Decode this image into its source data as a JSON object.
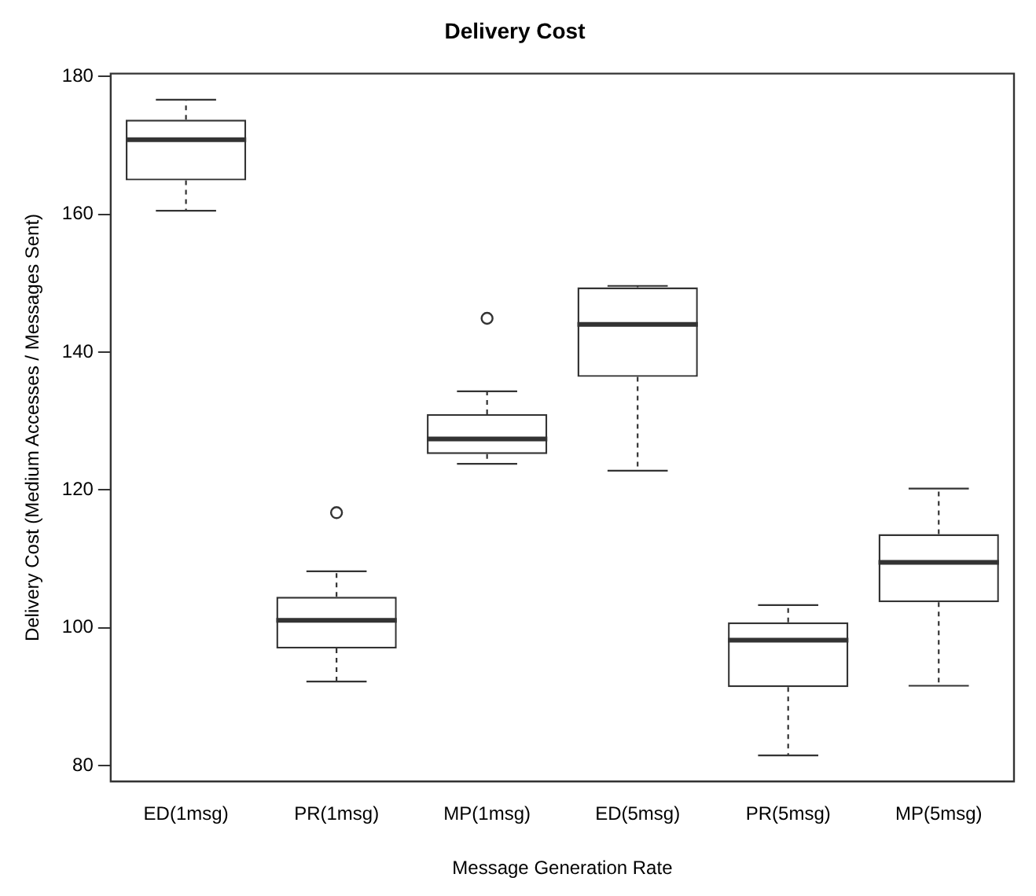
{
  "chart_data": {
    "type": "box",
    "title": "Delivery Cost",
    "xlabel": "Message Generation Rate",
    "ylabel": "Delivery Cost (Medium Accesses / Messages Sent)",
    "categories": [
      "ED(1msg)",
      "PR(1msg)",
      "MP(1msg)",
      "ED(5msg)",
      "PR(5msg)",
      "MP(5msg)"
    ],
    "boxes": [
      {
        "low": 160.5,
        "q1": 164.9,
        "median": 170.8,
        "q3": 173.7,
        "high": 176.6
      },
      {
        "low": 92.2,
        "q1": 97.0,
        "median": 101.1,
        "q3": 104.5,
        "high": 108.2,
        "outliers": [
          116.7
        ]
      },
      {
        "low": 123.8,
        "q1": 125.2,
        "median": 127.4,
        "q3": 131.0,
        "high": 134.3,
        "outliers": [
          144.9
        ]
      },
      {
        "low": 122.8,
        "q1": 136.4,
        "median": 144.0,
        "q3": 149.4,
        "high": 149.6
      },
      {
        "low": 81.5,
        "q1": 91.4,
        "median": 98.2,
        "q3": 100.8,
        "high": 103.3
      },
      {
        "low": 91.6,
        "q1": 103.7,
        "median": 109.5,
        "q3": 113.6,
        "high": 120.2
      }
    ],
    "ylim": [
      77.7,
      180.4
    ],
    "yticks": [
      80,
      100,
      120,
      140,
      160,
      180
    ],
    "grid": false,
    "legend": false
  }
}
